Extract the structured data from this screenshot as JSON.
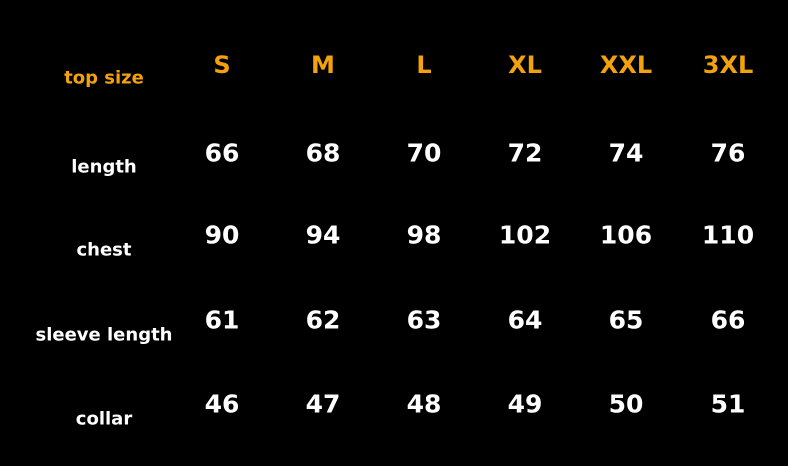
{
  "colors": {
    "accent": "#f2a20c",
    "text": "#ffffff",
    "background": "#000000"
  },
  "table": {
    "corner_label": "top size",
    "sizes": [
      "S",
      "M",
      "L",
      "XL",
      "XXL",
      "3XL"
    ],
    "rows": [
      {
        "label": "length",
        "values": [
          "66",
          "68",
          "70",
          "72",
          "74",
          "76"
        ]
      },
      {
        "label": "chest",
        "values": [
          "90",
          "94",
          "98",
          "102",
          "106",
          "110"
        ]
      },
      {
        "label": "sleeve length",
        "values": [
          "61",
          "62",
          "63",
          "64",
          "65",
          "66"
        ]
      },
      {
        "label": "collar",
        "values": [
          "46",
          "47",
          "48",
          "49",
          "50",
          "51"
        ]
      }
    ]
  }
}
